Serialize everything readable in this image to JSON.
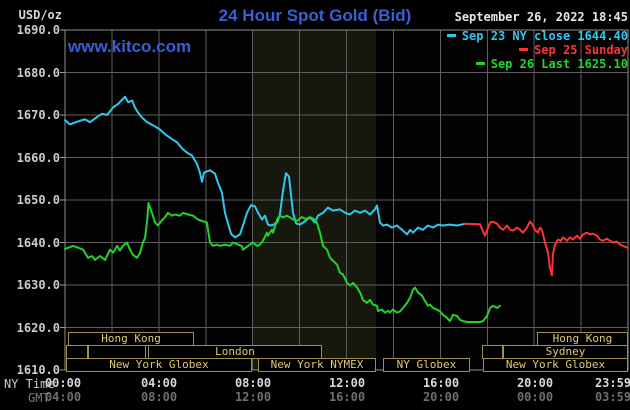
{
  "header": {
    "title": "24 Hour Spot Gold (Bid)",
    "watermark": "www.kitco.com",
    "datetime": "September 26, 2022 18:45",
    "units_label": "USD/oz"
  },
  "legend": [
    {
      "label": "Sep 23 NY close 1644.40",
      "color": "#2ec9f0"
    },
    {
      "label": "Sep 25 Sunday",
      "color": "#ff3333"
    },
    {
      "label": "Sep 26 Last 1625.10",
      "color": "#21d42a"
    }
  ],
  "axes": {
    "y_tick_labels": [
      "1690.0",
      "1680.0",
      "1670.0",
      "1660.0",
      "1650.0",
      "1640.0",
      "1630.0",
      "1620.0",
      "1610.0"
    ],
    "x_row1_label": "NY Time",
    "x_row2_label": "GMT",
    "x_row1_ticks": [
      "00:00",
      "04:00",
      "08:00",
      "12:00",
      "16:00",
      "20:00",
      "23:59"
    ],
    "x_row2_ticks": [
      "04:00",
      "08:00",
      "12:00",
      "16:00",
      "20:00",
      "00:00",
      "03:59"
    ]
  },
  "sessions": {
    "rows": [
      [
        {
          "label": "Hong Kong",
          "start_h": 0.13,
          "end_h": 5.5
        },
        {
          "label": "Hong Kong",
          "start_h": 20.12,
          "end_h": 24.0
        }
      ],
      [
        {
          "label": "",
          "start_h": 0.04,
          "end_h": 0.98
        },
        {
          "label": "",
          "start_h": 0.98,
          "end_h": 3.45
        },
        {
          "label": "London",
          "start_h": 3.54,
          "end_h": 10.96
        },
        {
          "label": "",
          "start_h": 17.78,
          "end_h": 18.67
        },
        {
          "label": "Sydney",
          "start_h": 18.67,
          "end_h": 24.0
        }
      ],
      [
        {
          "label": "New York Globex",
          "start_h": 0.04,
          "end_h": 7.97
        },
        {
          "label": "New York NYMEX",
          "start_h": 8.23,
          "end_h": 13.26
        },
        {
          "label": "NY Globex",
          "start_h": 13.56,
          "end_h": 17.26
        },
        {
          "label": "New York Globex",
          "start_h": 17.82,
          "end_h": 24.0
        }
      ]
    ]
  },
  "chart_data": {
    "type": "line",
    "title": "24 Hour Spot Gold (Bid)",
    "xlabel": "NY Time (hours 00:00-23:59)",
    "ylabel": "USD/oz",
    "x_range": [
      0,
      24
    ],
    "y_range": [
      1610,
      1690
    ],
    "grid": {
      "x_step_hours": 2,
      "y_step": 10,
      "on": true
    },
    "highlight_band_hours": [
      7.97,
      13.26
    ],
    "legend_position": "top-right",
    "series": [
      {
        "name": "Sep 23 NY close 1644.40",
        "color": "#2ec9f0",
        "points": [
          [
            0.0,
            1668.8
          ],
          [
            0.21,
            1667.8
          ],
          [
            0.55,
            1668.5
          ],
          [
            0.85,
            1669.0
          ],
          [
            1.07,
            1668.3
          ],
          [
            1.36,
            1669.5
          ],
          [
            1.58,
            1670.3
          ],
          [
            1.79,
            1670.0
          ],
          [
            2.05,
            1671.8
          ],
          [
            2.26,
            1672.6
          ],
          [
            2.56,
            1674.3
          ],
          [
            2.69,
            1673.0
          ],
          [
            2.86,
            1673.4
          ],
          [
            2.98,
            1671.8
          ],
          [
            3.11,
            1670.6
          ],
          [
            3.28,
            1669.4
          ],
          [
            3.5,
            1668.3
          ],
          [
            3.75,
            1667.6
          ],
          [
            4.05,
            1666.6
          ],
          [
            4.26,
            1665.5
          ],
          [
            4.56,
            1664.3
          ],
          [
            4.77,
            1663.6
          ],
          [
            5.03,
            1661.9
          ],
          [
            5.24,
            1661.0
          ],
          [
            5.41,
            1660.5
          ],
          [
            5.63,
            1658.4
          ],
          [
            5.75,
            1656.5
          ],
          [
            5.84,
            1654.3
          ],
          [
            5.93,
            1656.5
          ],
          [
            6.18,
            1657.0
          ],
          [
            6.39,
            1656.2
          ],
          [
            6.52,
            1654.1
          ],
          [
            6.69,
            1651.8
          ],
          [
            6.82,
            1647.0
          ],
          [
            6.95,
            1644.5
          ],
          [
            7.08,
            1642.0
          ],
          [
            7.25,
            1641.2
          ],
          [
            7.46,
            1641.9
          ],
          [
            7.59,
            1644.0
          ],
          [
            7.76,
            1647.0
          ],
          [
            7.93,
            1648.8
          ],
          [
            8.1,
            1648.5
          ],
          [
            8.23,
            1647.0
          ],
          [
            8.4,
            1645.4
          ],
          [
            8.53,
            1646.3
          ],
          [
            8.65,
            1644.2
          ],
          [
            8.82,
            1644.0
          ],
          [
            9.04,
            1644.7
          ],
          [
            9.16,
            1646.6
          ],
          [
            9.29,
            1652.0
          ],
          [
            9.42,
            1656.3
          ],
          [
            9.55,
            1655.5
          ],
          [
            9.72,
            1647.0
          ],
          [
            9.85,
            1644.5
          ],
          [
            10.02,
            1644.2
          ],
          [
            10.23,
            1645.0
          ],
          [
            10.44,
            1645.9
          ],
          [
            10.66,
            1644.7
          ],
          [
            10.78,
            1646.3
          ],
          [
            11.0,
            1647.0
          ],
          [
            11.21,
            1648.2
          ],
          [
            11.42,
            1647.5
          ],
          [
            11.72,
            1647.8
          ],
          [
            11.94,
            1647.0
          ],
          [
            12.15,
            1646.6
          ],
          [
            12.36,
            1647.5
          ],
          [
            12.58,
            1647.0
          ],
          [
            12.79,
            1647.5
          ],
          [
            13.0,
            1646.6
          ],
          [
            13.21,
            1647.8
          ],
          [
            13.3,
            1648.7
          ],
          [
            13.43,
            1644.7
          ],
          [
            13.56,
            1644.0
          ],
          [
            13.73,
            1644.2
          ],
          [
            13.94,
            1643.5
          ],
          [
            14.15,
            1644.0
          ],
          [
            14.37,
            1643.0
          ],
          [
            14.58,
            1641.9
          ],
          [
            14.71,
            1643.0
          ],
          [
            14.84,
            1642.3
          ],
          [
            15.05,
            1643.5
          ],
          [
            15.26,
            1643.0
          ],
          [
            15.47,
            1644.0
          ],
          [
            15.69,
            1643.5
          ],
          [
            15.9,
            1644.2
          ],
          [
            16.11,
            1644.0
          ],
          [
            16.41,
            1644.2
          ],
          [
            16.71,
            1644.0
          ],
          [
            17.05,
            1644.4
          ]
        ]
      },
      {
        "name": "Sep 25 Sunday",
        "color": "#ff3333",
        "points": [
          [
            17.05,
            1644.4
          ],
          [
            17.69,
            1644.3
          ],
          [
            17.9,
            1641.6
          ],
          [
            18.12,
            1644.7
          ],
          [
            18.25,
            1644.9
          ],
          [
            18.42,
            1644.4
          ],
          [
            18.54,
            1643.5
          ],
          [
            18.67,
            1643.0
          ],
          [
            18.84,
            1644.0
          ],
          [
            18.97,
            1643.0
          ],
          [
            19.1,
            1642.8
          ],
          [
            19.27,
            1643.5
          ],
          [
            19.4,
            1643.0
          ],
          [
            19.52,
            1642.3
          ],
          [
            19.69,
            1643.5
          ],
          [
            19.82,
            1644.9
          ],
          [
            19.91,
            1644.4
          ],
          [
            20.03,
            1643.0
          ],
          [
            20.16,
            1642.3
          ],
          [
            20.25,
            1643.5
          ],
          [
            20.33,
            1643.0
          ],
          [
            20.46,
            1640.0
          ],
          [
            20.59,
            1637.6
          ],
          [
            20.67,
            1634.1
          ],
          [
            20.76,
            1632.3
          ],
          [
            20.8,
            1637.2
          ],
          [
            20.89,
            1639.5
          ],
          [
            21.02,
            1640.7
          ],
          [
            21.14,
            1640.4
          ],
          [
            21.23,
            1641.2
          ],
          [
            21.4,
            1640.4
          ],
          [
            21.53,
            1641.2
          ],
          [
            21.65,
            1640.7
          ],
          [
            21.82,
            1641.6
          ],
          [
            21.95,
            1640.9
          ],
          [
            22.08,
            1641.9
          ],
          [
            22.25,
            1642.3
          ],
          [
            22.38,
            1641.9
          ],
          [
            22.51,
            1642.1
          ],
          [
            22.68,
            1641.6
          ],
          [
            22.8,
            1640.7
          ],
          [
            22.93,
            1640.4
          ],
          [
            23.1,
            1640.9
          ],
          [
            23.23,
            1640.4
          ],
          [
            23.36,
            1640.0
          ],
          [
            23.53,
            1640.2
          ],
          [
            23.66,
            1639.5
          ],
          [
            23.79,
            1639.2
          ],
          [
            23.96,
            1638.8
          ]
        ]
      },
      {
        "name": "Sep 26 Last 1625.10",
        "color": "#21d42a",
        "points": [
          [
            0.0,
            1638.5
          ],
          [
            0.34,
            1639.2
          ],
          [
            0.55,
            1638.8
          ],
          [
            0.77,
            1638.3
          ],
          [
            0.98,
            1636.4
          ],
          [
            1.15,
            1636.8
          ],
          [
            1.28,
            1635.9
          ],
          [
            1.49,
            1636.8
          ],
          [
            1.71,
            1635.9
          ],
          [
            1.92,
            1638.3
          ],
          [
            2.05,
            1637.6
          ],
          [
            2.22,
            1639.2
          ],
          [
            2.34,
            1638.1
          ],
          [
            2.47,
            1639.2
          ],
          [
            2.64,
            1640.0
          ],
          [
            2.77,
            1638.3
          ],
          [
            2.9,
            1637.1
          ],
          [
            3.07,
            1636.4
          ],
          [
            3.2,
            1637.6
          ],
          [
            3.32,
            1640.0
          ],
          [
            3.41,
            1641.0
          ],
          [
            3.5,
            1645.0
          ],
          [
            3.56,
            1649.3
          ],
          [
            3.67,
            1647.5
          ],
          [
            3.71,
            1647.0
          ],
          [
            3.84,
            1644.7
          ],
          [
            3.96,
            1644.0
          ],
          [
            4.13,
            1645.2
          ],
          [
            4.26,
            1645.9
          ],
          [
            4.39,
            1647.0
          ],
          [
            4.56,
            1646.3
          ],
          [
            4.69,
            1646.6
          ],
          [
            4.9,
            1646.3
          ],
          [
            5.03,
            1647.0
          ],
          [
            5.24,
            1646.6
          ],
          [
            5.46,
            1646.3
          ],
          [
            5.67,
            1645.4
          ],
          [
            5.88,
            1645.0
          ],
          [
            6.05,
            1644.7
          ],
          [
            6.18,
            1640.0
          ],
          [
            6.31,
            1639.2
          ],
          [
            6.48,
            1639.5
          ],
          [
            6.61,
            1639.2
          ],
          [
            6.82,
            1639.5
          ],
          [
            7.03,
            1639.2
          ],
          [
            7.16,
            1640.0
          ],
          [
            7.37,
            1639.5
          ],
          [
            7.54,
            1639.2
          ],
          [
            7.59,
            1638.3
          ],
          [
            7.8,
            1639.2
          ],
          [
            8.01,
            1640.0
          ],
          [
            8.18,
            1639.2
          ],
          [
            8.31,
            1639.5
          ],
          [
            8.44,
            1640.4
          ],
          [
            8.61,
            1642.3
          ],
          [
            8.65,
            1641.6
          ],
          [
            8.82,
            1643.0
          ],
          [
            8.87,
            1642.3
          ],
          [
            9.04,
            1645.4
          ],
          [
            9.16,
            1646.3
          ],
          [
            9.29,
            1645.9
          ],
          [
            9.46,
            1646.3
          ],
          [
            9.59,
            1645.9
          ],
          [
            9.72,
            1645.4
          ],
          [
            9.89,
            1645.1
          ],
          [
            10.1,
            1646.0
          ],
          [
            10.27,
            1645.5
          ],
          [
            10.44,
            1646.0
          ],
          [
            10.61,
            1645.5
          ],
          [
            10.74,
            1644.7
          ],
          [
            10.87,
            1642.3
          ],
          [
            11.0,
            1639.2
          ],
          [
            11.17,
            1638.3
          ],
          [
            11.3,
            1636.4
          ],
          [
            11.42,
            1635.7
          ],
          [
            11.6,
            1634.8
          ],
          [
            11.72,
            1632.9
          ],
          [
            11.85,
            1632.5
          ],
          [
            12.02,
            1630.5
          ],
          [
            12.15,
            1629.9
          ],
          [
            12.28,
            1630.5
          ],
          [
            12.45,
            1629.4
          ],
          [
            12.58,
            1628.2
          ],
          [
            12.7,
            1626.5
          ],
          [
            12.87,
            1625.8
          ],
          [
            13.0,
            1626.5
          ],
          [
            13.13,
            1625.4
          ],
          [
            13.3,
            1625.1
          ],
          [
            13.34,
            1623.9
          ],
          [
            13.51,
            1624.2
          ],
          [
            13.64,
            1623.5
          ],
          [
            13.77,
            1623.9
          ],
          [
            13.85,
            1623.5
          ],
          [
            13.98,
            1624.2
          ],
          [
            14.15,
            1623.5
          ],
          [
            14.28,
            1623.8
          ],
          [
            14.41,
            1624.6
          ],
          [
            14.58,
            1625.8
          ],
          [
            14.71,
            1627.0
          ],
          [
            14.84,
            1628.9
          ],
          [
            14.92,
            1629.4
          ],
          [
            15.05,
            1628.2
          ],
          [
            15.22,
            1627.5
          ],
          [
            15.35,
            1626.2
          ],
          [
            15.47,
            1625.1
          ],
          [
            15.56,
            1625.4
          ],
          [
            15.69,
            1624.6
          ],
          [
            15.86,
            1624.2
          ],
          [
            15.99,
            1623.8
          ],
          [
            16.11,
            1623.0
          ],
          [
            16.28,
            1622.3
          ],
          [
            16.41,
            1621.5
          ],
          [
            16.54,
            1623.0
          ],
          [
            16.71,
            1622.7
          ],
          [
            16.84,
            1621.8
          ],
          [
            16.97,
            1621.5
          ],
          [
            17.14,
            1621.3
          ],
          [
            17.39,
            1621.3
          ],
          [
            17.69,
            1621.3
          ],
          [
            17.82,
            1621.5
          ],
          [
            17.99,
            1622.7
          ],
          [
            18.12,
            1624.6
          ],
          [
            18.25,
            1625.1
          ],
          [
            18.42,
            1624.6
          ],
          [
            18.54,
            1625.1
          ]
        ]
      }
    ]
  }
}
